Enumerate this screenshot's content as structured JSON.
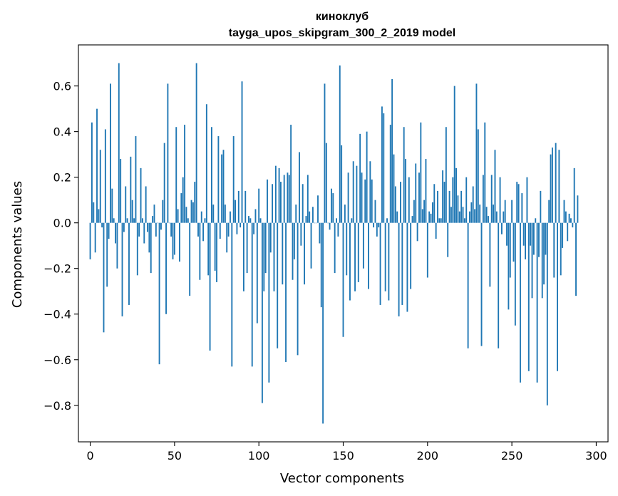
{
  "chart_data": {
    "type": "bar",
    "title": [
      "киноклуб",
      "tayga_upos_skipgram_300_2_2019 model"
    ],
    "xlabel": "Vector components",
    "ylabel": "Components values",
    "xlim": [
      -7,
      307
    ],
    "ylim": [
      -0.96,
      0.78
    ],
    "xticks": [
      0,
      50,
      100,
      150,
      200,
      250,
      300
    ],
    "yticks": [
      -0.8,
      -0.6,
      -0.4,
      -0.2,
      0.0,
      0.2,
      0.4,
      0.6
    ],
    "xtick_labels": [
      "0",
      "50",
      "100",
      "150",
      "200",
      "250",
      "300"
    ],
    "ytick_labels": [
      "−0.8",
      "−0.6",
      "−0.4",
      "−0.2",
      "0.0",
      "0.2",
      "0.4",
      "0.6"
    ],
    "bar_color": "#1f77b4",
    "values": [
      -0.16,
      0.44,
      0.09,
      -0.13,
      0.5,
      0.06,
      0.32,
      -0.02,
      -0.48,
      0.41,
      -0.28,
      -0.07,
      0.61,
      0.15,
      0.02,
      -0.09,
      -0.2,
      0.7,
      0.28,
      -0.41,
      -0.04,
      0.16,
      0.02,
      -0.36,
      0.29,
      0.1,
      0.02,
      0.38,
      -0.23,
      -0.06,
      0.24,
      0.02,
      -0.09,
      0.16,
      -0.04,
      -0.13,
      -0.22,
      0.03,
      0.08,
      -0.06,
      0.0,
      -0.62,
      -0.03,
      0.1,
      0.35,
      -0.4,
      0.61,
      0.0,
      -0.06,
      -0.16,
      -0.14,
      0.42,
      0.06,
      -0.17,
      0.13,
      0.2,
      0.43,
      0.07,
      0.02,
      -0.32,
      0.1,
      0.09,
      0.18,
      0.7,
      -0.06,
      -0.25,
      0.05,
      -0.08,
      0.02,
      0.52,
      -0.23,
      -0.56,
      0.42,
      0.08,
      -0.21,
      -0.26,
      0.38,
      -0.07,
      0.3,
      0.32,
      0.08,
      -0.13,
      -0.06,
      0.05,
      -0.63,
      0.38,
      0.1,
      -0.05,
      0.14,
      -0.02,
      0.62,
      -0.3,
      0.14,
      -0.22,
      0.03,
      0.02,
      -0.63,
      -0.05,
      0.06,
      -0.44,
      0.15,
      0.02,
      -0.79,
      -0.3,
      -0.22,
      0.19,
      -0.7,
      -0.13,
      0.17,
      -0.3,
      0.25,
      -0.55,
      0.24,
      0.18,
      -0.27,
      0.21,
      -0.61,
      0.22,
      0.21,
      0.43,
      -0.25,
      -0.16,
      0.08,
      -0.58,
      0.31,
      -0.1,
      0.17,
      -0.27,
      0.03,
      0.21,
      0.05,
      -0.2,
      0.07,
      0.0,
      0.0,
      0.12,
      -0.09,
      -0.37,
      -0.88,
      0.61,
      0.35,
      0.0,
      -0.03,
      0.15,
      0.13,
      -0.22,
      0.02,
      -0.06,
      0.69,
      0.34,
      -0.5,
      0.08,
      -0.23,
      0.22,
      -0.34,
      0.02,
      0.27,
      -0.3,
      0.25,
      -0.26,
      0.39,
      0.22,
      -0.2,
      0.19,
      0.4,
      -0.29,
      0.27,
      0.19,
      -0.02,
      0.1,
      -0.06,
      -0.02,
      -0.36,
      0.51,
      0.48,
      -0.3,
      0.02,
      -0.34,
      0.43,
      0.63,
      0.3,
      0.16,
      0.05,
      -0.41,
      0.18,
      -0.36,
      0.42,
      0.28,
      -0.39,
      0.2,
      -0.29,
      0.03,
      0.1,
      0.26,
      -0.08,
      0.22,
      0.44,
      0.06,
      0.1,
      0.28,
      -0.24,
      0.05,
      0.04,
      0.09,
      0.17,
      -0.07,
      0.14,
      0.02,
      0.02,
      0.23,
      0.18,
      0.42,
      -0.15,
      0.14,
      0.07,
      0.2,
      0.6,
      0.24,
      0.12,
      0.05,
      0.14,
      0.07,
      0.02,
      0.2,
      -0.55,
      0.05,
      0.09,
      0.16,
      0.06,
      0.61,
      0.41,
      0.08,
      -0.54,
      0.21,
      0.44,
      0.07,
      0.03,
      -0.28,
      0.21,
      0.08,
      0.32,
      0.05,
      -0.55,
      0.2,
      -0.05,
      0.05,
      0.1,
      -0.1,
      -0.38,
      -0.24,
      0.1,
      -0.17,
      -0.45,
      0.18,
      0.17,
      -0.7,
      0.13,
      -0.1,
      -0.16,
      0.2,
      -0.65,
      -0.1,
      -0.33,
      -0.14,
      0.02,
      -0.7,
      -0.15,
      0.14,
      -0.33,
      -0.27,
      -0.14,
      -0.8,
      0.1,
      0.3,
      0.33,
      -0.24,
      0.35,
      -0.65,
      0.32,
      -0.23,
      -0.11,
      0.1,
      0.05,
      -0.08,
      0.04,
      0.02,
      -0.02,
      0.24,
      -0.32,
      0.12
    ]
  }
}
